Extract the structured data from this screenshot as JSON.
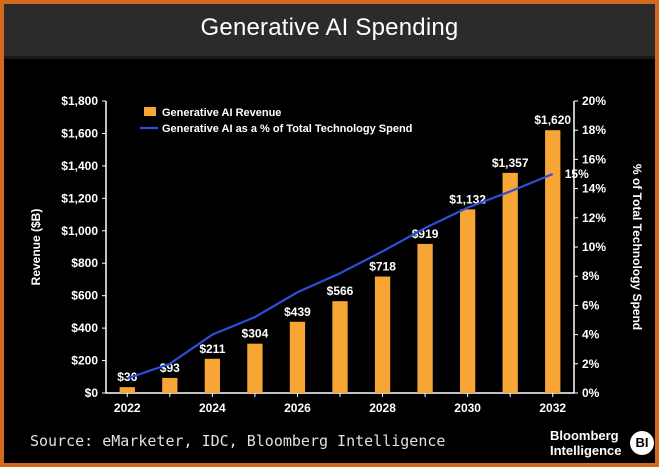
{
  "page": {
    "title": "Generative AI Spending",
    "source": "Source: eMarketer, IDC, Bloomberg Intelligence",
    "brand_line1": "Bloomberg",
    "brand_line2": "Intelligence",
    "brand_badge": "BI"
  },
  "colors": {
    "bar": "#f7a535",
    "line": "#2b4fd8",
    "text": "#ffffff"
  },
  "chart_data": {
    "type": "bar",
    "title": "Generative AI Spending",
    "categories": [
      "2022",
      "2023",
      "2024",
      "2025",
      "2026",
      "2027",
      "2028",
      "2029",
      "2030",
      "2031",
      "2032"
    ],
    "series": [
      {
        "name": "Generative AI Revenue",
        "type": "bar",
        "axis": "left",
        "values": [
          36,
          93,
          211,
          304,
          439,
          566,
          718,
          919,
          1132,
          1357,
          1620
        ],
        "labels": [
          "$36",
          "$93",
          "$211",
          "$304",
          "$439",
          "$566",
          "$718",
          "$919",
          "$1,132",
          "$1,357",
          "$1,620"
        ]
      },
      {
        "name": "Generative AI as a % of Total Technology Spend",
        "type": "line",
        "axis": "right",
        "values": [
          1.0,
          2.0,
          4.0,
          5.2,
          6.9,
          8.2,
          9.7,
          11.3,
          12.7,
          13.8,
          15.0
        ],
        "end_label": "15%"
      }
    ],
    "xtick_labels": [
      "2022",
      "2024",
      "2026",
      "2028",
      "2030",
      "2032"
    ],
    "ylabel": "Revenue ($B)",
    "ylim": [
      0,
      1800
    ],
    "ytick_values": [
      0,
      200,
      400,
      600,
      800,
      1000,
      1200,
      1400,
      1600,
      1800
    ],
    "ytick_labels": [
      "$0",
      "$200",
      "$400",
      "$600",
      "$800",
      "$1,000",
      "$1,200",
      "$1,400",
      "$1,600",
      "$1,800"
    ],
    "y2label": "% of Total Technology Spend",
    "y2lim": [
      0,
      20
    ],
    "y2tick_values": [
      0,
      2,
      4,
      6,
      8,
      10,
      12,
      14,
      16,
      18,
      20
    ],
    "y2tick_labels": [
      "0%",
      "2%",
      "4%",
      "6%",
      "8%",
      "10%",
      "12%",
      "14%",
      "16%",
      "18%",
      "20%"
    ],
    "grid": false,
    "legend": "top-left"
  }
}
